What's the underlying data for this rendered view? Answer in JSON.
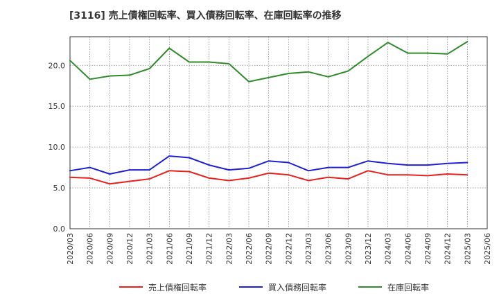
{
  "chart_data": {
    "type": "line",
    "title": "[3116]  売上債権回転率、買入債務回転率、在庫回転率の推移",
    "xlabel": "",
    "ylabel": "",
    "ylim": [
      0,
      23.5
    ],
    "yticks": [
      "0.0",
      "5.0",
      "10.0",
      "15.0",
      "20.0"
    ],
    "ytick_values": [
      0,
      5,
      10,
      15,
      20
    ],
    "grid": true,
    "legend_position": "bottom",
    "categories": [
      "2020/03",
      "2020/06",
      "2020/09",
      "2020/12",
      "2021/03",
      "2021/06",
      "2021/09",
      "2021/12",
      "2022/03",
      "2022/06",
      "2022/09",
      "2022/12",
      "2023/03",
      "2023/06",
      "2023/09",
      "2023/12",
      "2024/03",
      "2024/06",
      "2024/09",
      "2024/12",
      "2025/03",
      "2025/06"
    ],
    "series": [
      {
        "name": "売上債権回転率",
        "color": "#e8201c",
        "values": [
          6.3,
          6.2,
          5.5,
          5.8,
          6.1,
          7.1,
          7.0,
          6.2,
          5.9,
          6.2,
          6.8,
          6.6,
          5.9,
          6.3,
          6.1,
          7.1,
          6.6,
          6.6,
          6.5,
          6.7,
          6.6,
          null
        ]
      },
      {
        "name": "買入債務回転率",
        "color": "#1c1fd4",
        "values": [
          7.1,
          7.5,
          6.7,
          7.2,
          7.2,
          8.9,
          8.7,
          7.8,
          7.2,
          7.4,
          8.3,
          8.1,
          7.1,
          7.5,
          7.5,
          8.3,
          8.0,
          7.8,
          7.8,
          8.0,
          8.1,
          null
        ]
      },
      {
        "name": "在庫回転率",
        "color": "#2e8a2a",
        "values": [
          20.6,
          18.3,
          18.7,
          18.8,
          19.6,
          22.1,
          20.4,
          20.4,
          20.2,
          18.0,
          18.5,
          19.0,
          19.2,
          18.6,
          19.3,
          21.1,
          22.8,
          21.5,
          21.5,
          21.4,
          22.9,
          null
        ]
      }
    ]
  }
}
